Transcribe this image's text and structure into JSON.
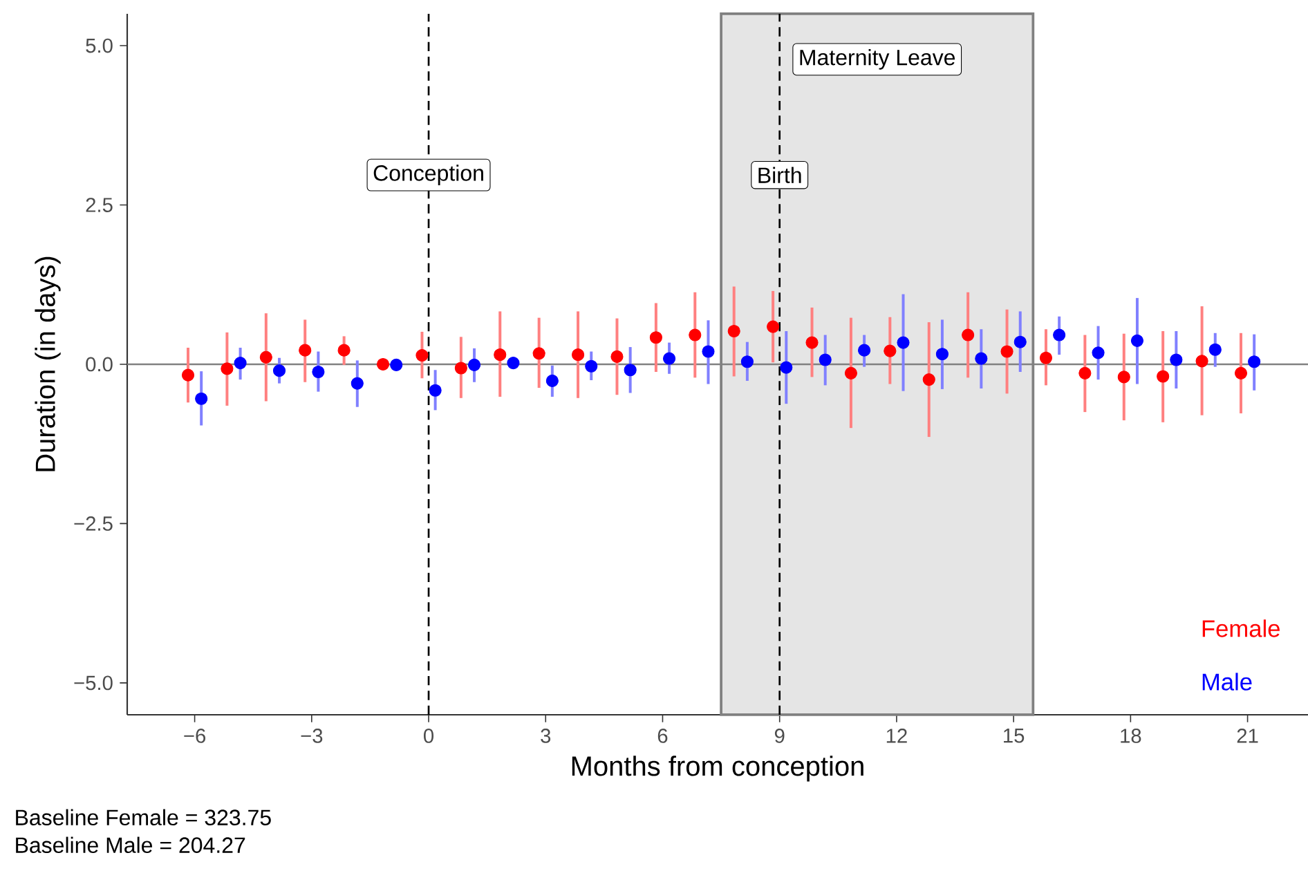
{
  "chart_data": {
    "type": "scatter",
    "xlabel": "Months from conception",
    "ylabel": "Duration (in days)",
    "annotations": [
      "Baseline Female = 323.75",
      "Baseline Male = 204.27"
    ],
    "xlim": [
      -7.73,
      22.55
    ],
    "ylim": [
      -5.5,
      5.5
    ],
    "xticks": [
      {
        "value": -6,
        "label": "−6"
      },
      {
        "value": -3,
        "label": "−3"
      },
      0,
      3,
      6,
      9,
      12,
      15,
      18,
      21
    ],
    "yticks": [
      {
        "value": -5,
        "label": "−5.0"
      },
      {
        "value": -2.5,
        "label": "−2.5"
      },
      {
        "value": 0,
        "label": "0.0"
      },
      {
        "value": 2.5,
        "label": "2.5"
      },
      {
        "value": 5,
        "label": "5.0"
      }
    ],
    "marker": "circle",
    "legend": "bottom right",
    "grid": false,
    "ref_lines": [
      {
        "axis": "y",
        "value": 0,
        "color": "#808080",
        "line_style": "solid"
      },
      {
        "axis": "x",
        "value": 0,
        "label": "Conception",
        "color": "#000000",
        "line_style": "dashed"
      },
      {
        "axis": "x",
        "value": 9,
        "label": "Birth",
        "color": "#000000",
        "line_style": "dashed"
      }
    ],
    "bands": [
      {
        "axis": "x",
        "from": 7.5,
        "to": 15.5,
        "label": "Maternity Leave",
        "color": "#e5e5e5"
      }
    ],
    "series": [
      {
        "name": "Female",
        "color": "#ff0000",
        "x": [
          -6.17,
          -5.17,
          -4.17,
          -3.17,
          -2.17,
          -1.17,
          -0.17,
          0.83,
          1.83,
          2.83,
          3.83,
          4.83,
          5.83,
          6.83,
          7.83,
          8.83,
          9.83,
          10.83,
          11.83,
          12.83,
          13.83,
          14.83,
          15.83,
          16.83,
          17.83,
          18.83,
          19.83,
          20.83
        ],
        "values": [
          -0.17,
          -0.07,
          0.11,
          0.22,
          0.22,
          0.0,
          0.14,
          -0.06,
          0.15,
          0.17,
          0.15,
          0.12,
          0.42,
          0.46,
          0.52,
          0.59,
          0.34,
          -0.14,
          0.21,
          -0.24,
          0.46,
          0.2,
          0.1,
          -0.14,
          -0.2,
          -0.19,
          0.05,
          -0.14
        ],
        "errors": [
          [
            -0.6,
            0.26
          ],
          [
            -0.65,
            0.5
          ],
          [
            -0.58,
            0.8
          ],
          [
            -0.28,
            0.7
          ],
          [
            -0.01,
            0.44
          ],
          null,
          [
            -0.22,
            0.51
          ],
          [
            -0.53,
            0.43
          ],
          [
            -0.51,
            0.83
          ],
          [
            -0.37,
            0.73
          ],
          [
            -0.53,
            0.83
          ],
          [
            -0.48,
            0.72
          ],
          [
            -0.12,
            0.96
          ],
          [
            -0.21,
            1.13
          ],
          [
            -0.19,
            1.22
          ],
          [
            0.03,
            1.15
          ],
          [
            -0.2,
            0.89
          ],
          [
            -1.0,
            0.73
          ],
          [
            -0.31,
            0.74
          ],
          [
            -1.14,
            0.66
          ],
          [
            -0.21,
            1.13
          ],
          [
            -0.46,
            0.86
          ],
          [
            -0.33,
            0.55
          ],
          [
            -0.75,
            0.46
          ],
          [
            -0.88,
            0.48
          ],
          [
            -0.91,
            0.52
          ],
          [
            -0.8,
            0.91
          ],
          [
            -0.77,
            0.49
          ]
        ]
      },
      {
        "name": "Male",
        "color": "#0000ff",
        "x": [
          -5.83,
          -4.83,
          -3.83,
          -2.83,
          -1.83,
          -0.83,
          0.17,
          1.17,
          2.17,
          3.17,
          4.17,
          5.17,
          6.17,
          7.17,
          8.17,
          9.17,
          10.17,
          11.17,
          12.17,
          13.17,
          14.17,
          15.17,
          16.17,
          17.17,
          18.17,
          19.17,
          20.17,
          21.17
        ],
        "values": [
          -0.54,
          0.02,
          -0.1,
          -0.12,
          -0.3,
          -0.01,
          -0.41,
          -0.01,
          0.02,
          -0.26,
          -0.03,
          -0.09,
          0.09,
          0.2,
          0.04,
          -0.05,
          0.07,
          0.22,
          0.34,
          0.16,
          0.09,
          0.35,
          0.46,
          0.18,
          0.37,
          0.07,
          0.23,
          0.04
        ],
        "errors": [
          [
            -0.96,
            -0.11
          ],
          [
            -0.24,
            0.26
          ],
          [
            -0.3,
            0.1
          ],
          [
            -0.43,
            0.2
          ],
          [
            -0.67,
            0.06
          ],
          null,
          [
            -0.72,
            -0.09
          ],
          [
            -0.28,
            0.25
          ],
          null,
          [
            -0.51,
            -0.02
          ],
          [
            -0.25,
            0.2
          ],
          [
            -0.45,
            0.27
          ],
          [
            -0.15,
            0.34
          ],
          [
            -0.31,
            0.69
          ],
          [
            -0.26,
            0.35
          ],
          [
            -0.62,
            0.52
          ],
          [
            -0.33,
            0.46
          ],
          [
            -0.04,
            0.46
          ],
          [
            -0.42,
            1.1
          ],
          [
            -0.39,
            0.7
          ],
          [
            -0.38,
            0.55
          ],
          [
            -0.12,
            0.83
          ],
          [
            0.15,
            0.75
          ],
          [
            -0.24,
            0.6
          ],
          [
            -0.31,
            1.04
          ],
          [
            -0.38,
            0.52
          ],
          [
            -0.04,
            0.49
          ],
          [
            -0.41,
            0.47
          ]
        ]
      }
    ]
  }
}
